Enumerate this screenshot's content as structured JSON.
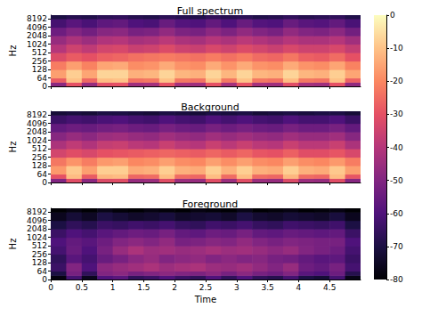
{
  "chart_data": [
    {
      "type": "heatmap",
      "title": "Full spectrum",
      "y_label": "Hz",
      "log": "y",
      "tick_labels": "y",
      "xlim": [
        0,
        5
      ],
      "ylim": [
        0,
        11025
      ],
      "xticks": [
        0,
        0.5,
        1,
        1.5,
        2,
        2.5,
        3,
        3.5,
        4,
        4.5
      ],
      "yticks": [
        0,
        64,
        128,
        256,
        512,
        1024,
        2048,
        4096,
        8192
      ],
      "x_bins": [
        0,
        0.25,
        0.5,
        0.75,
        1,
        1.25,
        1.5,
        1.75,
        2,
        2.25,
        2.5,
        2.75,
        3,
        3.25,
        3.5,
        3.75,
        4,
        4.25,
        4.5,
        4.75,
        5
      ],
      "y_bins": [
        0,
        32,
        64,
        128,
        256,
        512,
        1024,
        2048,
        4096,
        8192,
        11025
      ],
      "values": [
        [
          -48,
          -30,
          -46,
          -31,
          -30,
          -44,
          -43,
          -30,
          -43,
          -44,
          -30,
          -43,
          -30,
          -43,
          -44,
          -31,
          -43,
          -44,
          -30,
          -47
        ],
        [
          -28,
          -10,
          -26,
          -11,
          -10,
          -24,
          -23,
          -10,
          -23,
          -24,
          -10,
          -23,
          -10,
          -23,
          -24,
          -11,
          -23,
          -24,
          -10,
          -27
        ],
        [
          -16,
          -8,
          -15,
          -7,
          -7,
          -13,
          -12,
          -7,
          -12,
          -13,
          -7,
          -12,
          -7,
          -12,
          -13,
          -7,
          -12,
          -13,
          -8,
          -15
        ],
        [
          -22,
          -16,
          -21,
          -15,
          -14,
          -19,
          -18,
          -14,
          -18,
          -19,
          -14,
          -18,
          -14,
          -18,
          -19,
          -14,
          -18,
          -19,
          -15,
          -21
        ],
        [
          -32,
          -28,
          -30,
          -27,
          -26,
          -24,
          -23,
          -22,
          -23,
          -24,
          -22,
          -24,
          -22,
          -25,
          -26,
          -23,
          -27,
          -28,
          -25,
          -30
        ],
        [
          -40,
          -35,
          -38,
          -34,
          -33,
          -36,
          -35,
          -32,
          -35,
          -36,
          -33,
          -35,
          -32,
          -34,
          -36,
          -33,
          -35,
          -35,
          -33,
          -37
        ],
        [
          -46,
          -42,
          -45,
          -41,
          -40,
          -43,
          -42,
          -39,
          -42,
          -43,
          -40,
          -42,
          -39,
          -41,
          -43,
          -40,
          -42,
          -42,
          -40,
          -44
        ],
        [
          -54,
          -50,
          -53,
          -49,
          -48,
          -52,
          -51,
          -47,
          -51,
          -52,
          -48,
          -51,
          -47,
          -50,
          -52,
          -47,
          -50,
          -51,
          -48,
          -53
        ],
        [
          -62,
          -58,
          -61,
          -57,
          -56,
          -60,
          -61,
          -55,
          -59,
          -60,
          -56,
          -60,
          -55,
          -59,
          -60,
          -55,
          -58,
          -59,
          -56,
          -61
        ],
        [
          -70,
          -68,
          -69,
          -67,
          -66,
          -68,
          -69,
          -67,
          -68,
          -69,
          -66,
          -68,
          -67,
          -69,
          -68,
          -66,
          -68,
          -67,
          -66,
          -69
        ]
      ]
    },
    {
      "type": "heatmap",
      "title": "Background",
      "y_label": "Hz",
      "log": "y",
      "tick_labels": "y",
      "xlim": [
        0,
        5
      ],
      "ylim": [
        0,
        11025
      ],
      "xticks": [
        0,
        0.5,
        1,
        1.5,
        2,
        2.5,
        3,
        3.5,
        4,
        4.5
      ],
      "yticks": [
        0,
        64,
        128,
        256,
        512,
        1024,
        2048,
        4096,
        8192
      ],
      "x_bins": [
        0,
        0.25,
        0.5,
        0.75,
        1,
        1.25,
        1.5,
        1.75,
        2,
        2.25,
        2.5,
        2.75,
        3,
        3.25,
        3.5,
        3.75,
        4,
        4.25,
        4.5,
        4.75,
        5
      ],
      "y_bins": [
        0,
        32,
        64,
        128,
        256,
        512,
        1024,
        2048,
        4096,
        8192,
        11025
      ],
      "values": [
        [
          -50,
          -31,
          -48,
          -32,
          -31,
          -46,
          -45,
          -31,
          -45,
          -46,
          -31,
          -45,
          -31,
          -45,
          -46,
          -32,
          -45,
          -46,
          -31,
          -49
        ],
        [
          -30,
          -11,
          -28,
          -12,
          -11,
          -26,
          -25,
          -11,
          -25,
          -26,
          -11,
          -25,
          -11,
          -25,
          -26,
          -12,
          -25,
          -26,
          -11,
          -29
        ],
        [
          -17,
          -9,
          -16,
          -8,
          -8,
          -14,
          -13,
          -8,
          -13,
          -14,
          -8,
          -13,
          -8,
          -13,
          -14,
          -8,
          -13,
          -14,
          -9,
          -16
        ],
        [
          -23,
          -18,
          -22,
          -17,
          -16,
          -20,
          -19,
          -16,
          -19,
          -20,
          -16,
          -19,
          -16,
          -19,
          -20,
          -16,
          -19,
          -20,
          -17,
          -22
        ],
        [
          -34,
          -31,
          -33,
          -30,
          -29,
          -28,
          -27,
          -26,
          -27,
          -28,
          -26,
          -28,
          -26,
          -29,
          -30,
          -27,
          -31,
          -31,
          -29,
          -33
        ],
        [
          -42,
          -38,
          -41,
          -37,
          -36,
          -39,
          -40,
          -36,
          -39,
          -40,
          -36,
          -39,
          -36,
          -39,
          -40,
          -36,
          -39,
          -39,
          -36,
          -42
        ],
        [
          -49,
          -46,
          -48,
          -45,
          -44,
          -46,
          -47,
          -44,
          -46,
          -47,
          -44,
          -46,
          -44,
          -46,
          -47,
          -44,
          -46,
          -46,
          -44,
          -49
        ],
        [
          -56,
          -54,
          -55,
          -53,
          -52,
          -54,
          -55,
          -52,
          -54,
          -55,
          -52,
          -54,
          -52,
          -54,
          -55,
          -52,
          -54,
          -54,
          -52,
          -56
        ],
        [
          -64,
          -62,
          -63,
          -61,
          -60,
          -62,
          -63,
          -60,
          -62,
          -63,
          -60,
          -62,
          -60,
          -62,
          -63,
          -60,
          -62,
          -62,
          -60,
          -64
        ],
        [
          -72,
          -71,
          -72,
          -70,
          -70,
          -71,
          -72,
          -70,
          -71,
          -72,
          -70,
          -71,
          -70,
          -72,
          -71,
          -70,
          -71,
          -70,
          -70,
          -72
        ]
      ]
    },
    {
      "type": "heatmap",
      "title": "Foreground",
      "x_label": "Time",
      "y_label": "Hz",
      "log": "y",
      "xlim": [
        0,
        5
      ],
      "ylim": [
        0,
        11025
      ],
      "xticks": [
        0,
        0.5,
        1,
        1.5,
        2,
        2.5,
        3,
        3.5,
        4,
        4.5
      ],
      "yticks": [
        0,
        64,
        128,
        256,
        512,
        1024,
        2048,
        4096,
        8192
      ],
      "x_bins": [
        0,
        0.25,
        0.5,
        0.75,
        1,
        1.25,
        1.5,
        1.75,
        2,
        2.25,
        2.5,
        2.75,
        3,
        3.25,
        3.5,
        3.75,
        4,
        4.25,
        4.5,
        4.75,
        5
      ],
      "y_bins": [
        0,
        32,
        64,
        128,
        256,
        512,
        1024,
        2048,
        4096,
        8192,
        11025
      ],
      "values": [
        [
          -78,
          -62,
          -76,
          -60,
          -58,
          -66,
          -64,
          -60,
          -64,
          -66,
          -60,
          -66,
          -60,
          -66,
          -68,
          -62,
          -70,
          -72,
          -62,
          -77
        ],
        [
          -70,
          -52,
          -66,
          -50,
          -48,
          -52,
          -50,
          -48,
          -50,
          -51,
          -48,
          -52,
          -48,
          -52,
          -54,
          -50,
          -58,
          -60,
          -54,
          -68
        ],
        [
          -64,
          -50,
          -60,
          -48,
          -46,
          -44,
          -42,
          -45,
          -43,
          -42,
          -45,
          -46,
          -44,
          -47,
          -50,
          -46,
          -54,
          -56,
          -52,
          -62
        ],
        [
          -66,
          -58,
          -62,
          -55,
          -52,
          -48,
          -46,
          -50,
          -48,
          -47,
          -50,
          -48,
          -50,
          -49,
          -52,
          -53,
          -56,
          -58,
          -57,
          -64
        ],
        [
          -62,
          -55,
          -60,
          -52,
          -46,
          -42,
          -45,
          -44,
          -46,
          -45,
          -43,
          -45,
          -44,
          -46,
          -48,
          -46,
          -50,
          -52,
          -54,
          -62
        ],
        [
          -60,
          -56,
          -58,
          -54,
          -50,
          -48,
          -50,
          -47,
          -52,
          -51,
          -49,
          -50,
          -47,
          -50,
          -52,
          -50,
          -51,
          -52,
          -52,
          -60
        ],
        [
          -64,
          -60,
          -62,
          -58,
          -56,
          -54,
          -55,
          -52,
          -56,
          -57,
          -54,
          -55,
          -52,
          -56,
          -57,
          -55,
          -56,
          -57,
          -56,
          -64
        ],
        [
          -70,
          -66,
          -68,
          -64,
          -65,
          -63,
          -64,
          -62,
          -65,
          -66,
          -63,
          -64,
          -62,
          -65,
          -66,
          -63,
          -64,
          -65,
          -63,
          -70
        ],
        [
          -76,
          -72,
          -75,
          -70,
          -72,
          -74,
          -73,
          -71,
          -74,
          -73,
          -72,
          -74,
          -70,
          -73,
          -74,
          -72,
          -73,
          -74,
          -71,
          -76
        ],
        [
          -80,
          -78,
          -80,
          -77,
          -79,
          -80,
          -78,
          -79,
          -80,
          -78,
          -79,
          -80,
          -77,
          -80,
          -79,
          -78,
          -80,
          -79,
          -78,
          -80
        ]
      ]
    }
  ],
  "colorbar": {
    "range": [
      -80,
      0
    ],
    "ticks": [
      0,
      -10,
      -20,
      -30,
      -40,
      -50,
      -60,
      -70,
      -80
    ]
  }
}
